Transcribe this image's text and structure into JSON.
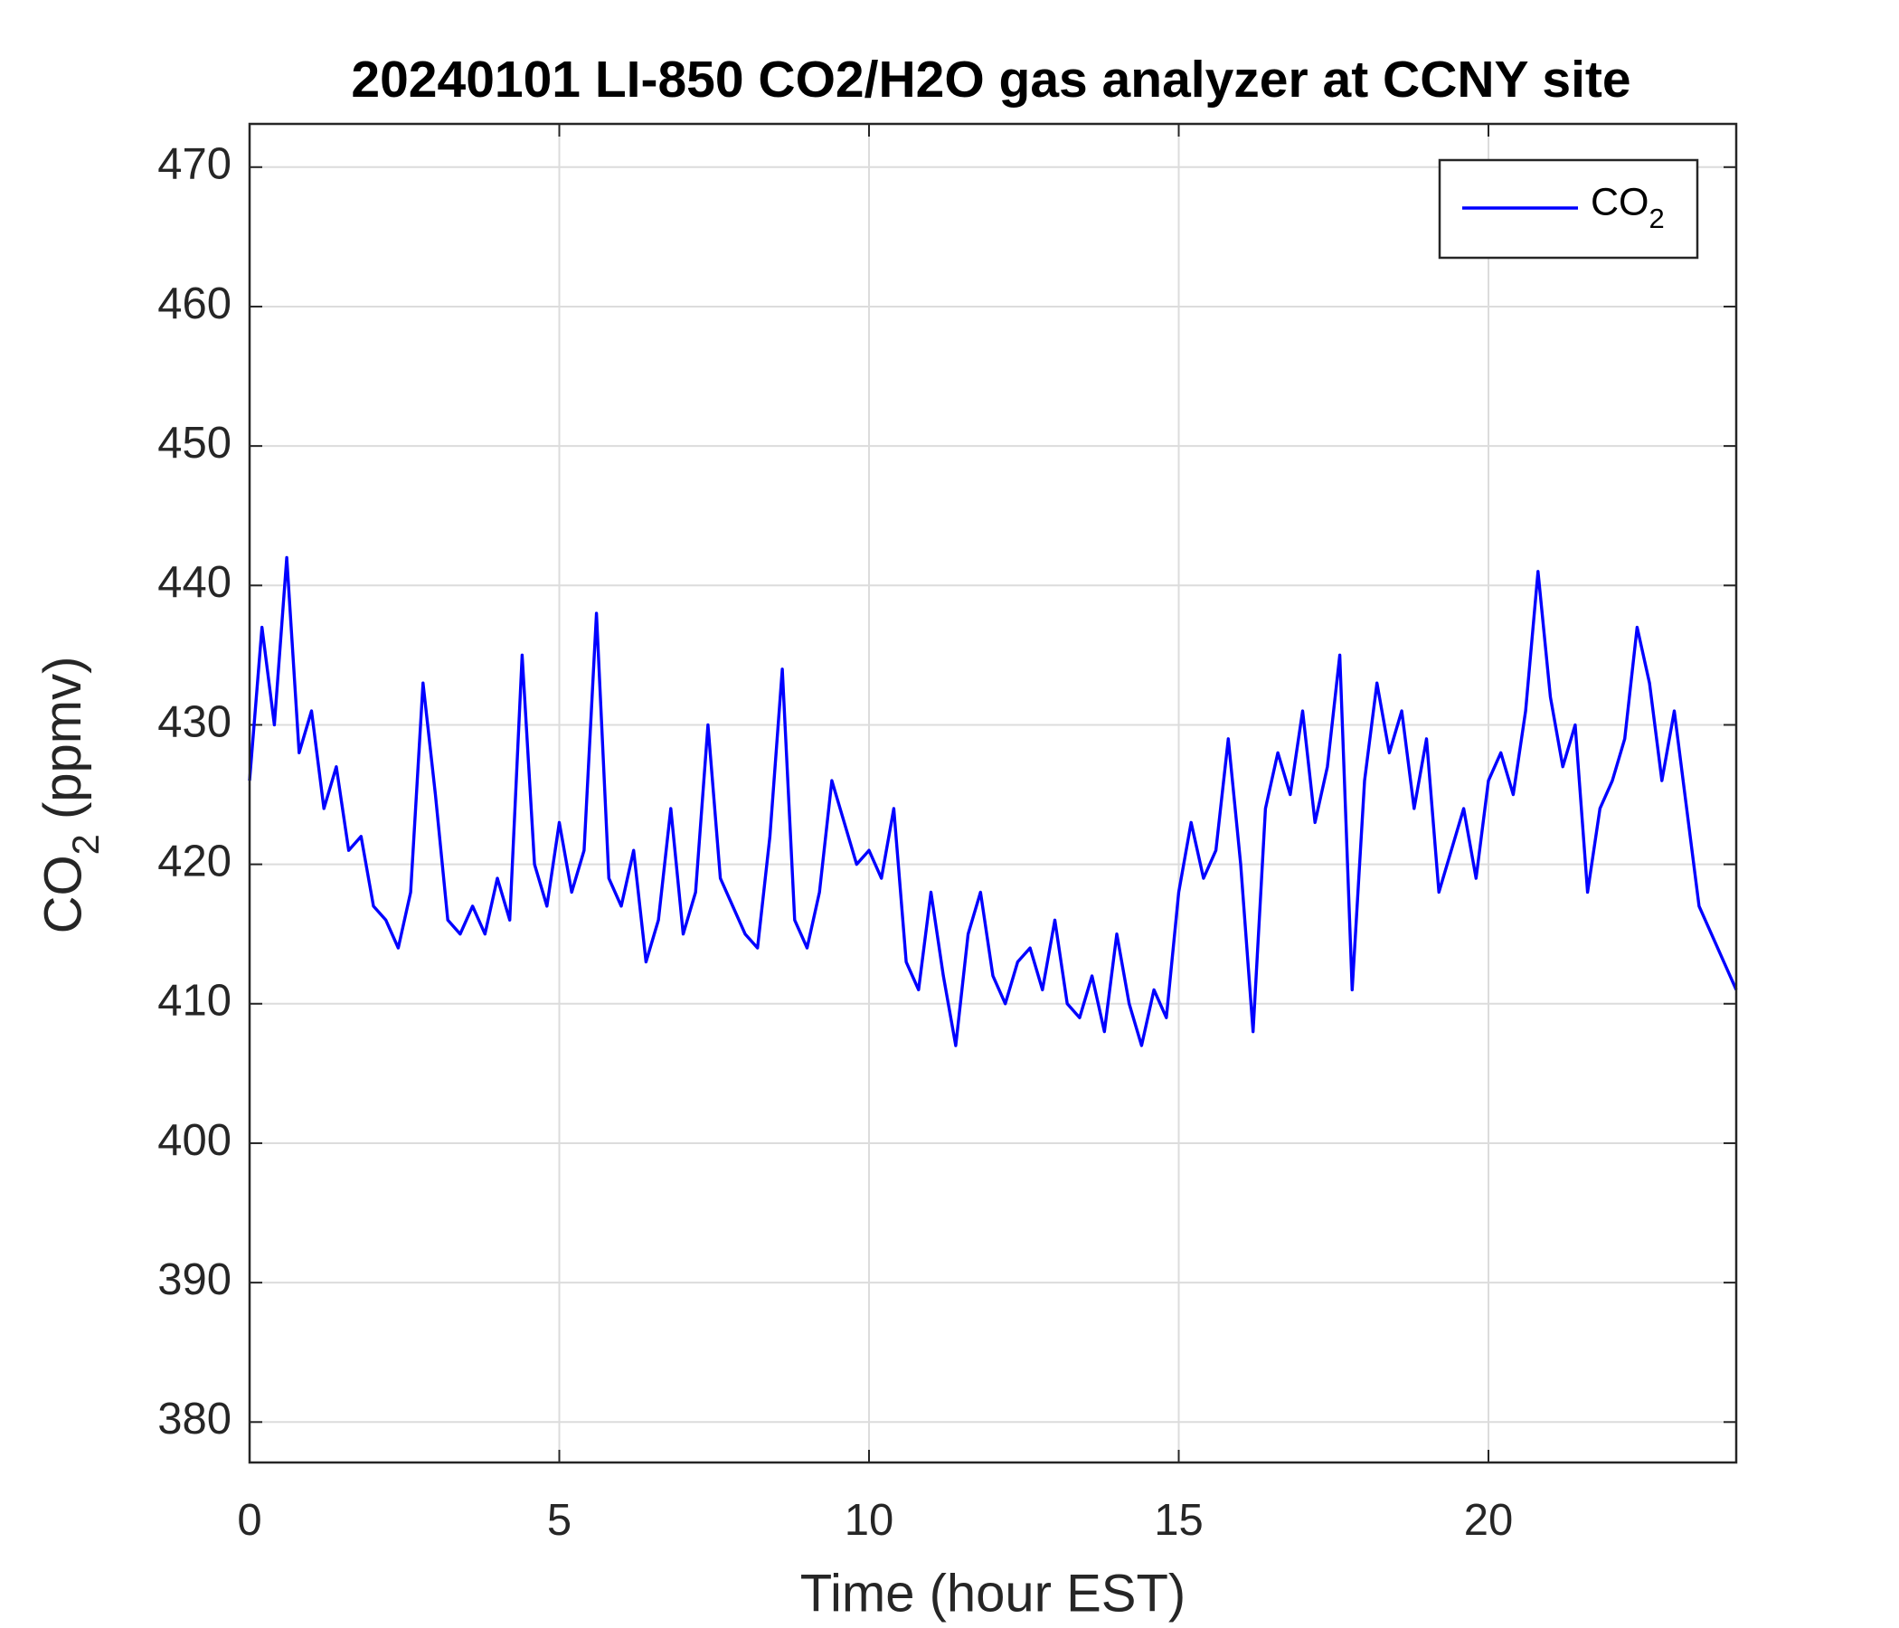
{
  "chart_data": {
    "type": "line",
    "title": "20240101 LI-850 CO2/H2O gas analyzer at CCNY site",
    "xlabel": "Time (hour EST)",
    "ylabel": "CO2 (ppmv)",
    "x": [
      0,
      0.2,
      0.4,
      0.6,
      0.8,
      1,
      1.2,
      1.4,
      1.6,
      1.8,
      2,
      2.2,
      2.4,
      2.6,
      2.8,
      3,
      3.2,
      3.4,
      3.6,
      3.8,
      4,
      4.2,
      4.4,
      4.6,
      4.8,
      5,
      5.2,
      5.4,
      5.6,
      5.8,
      6,
      6.2,
      6.4,
      6.6,
      6.8,
      7,
      7.2,
      7.4,
      7.6,
      7.8,
      8,
      8.2,
      8.4,
      8.6,
      8.8,
      9,
      9.2,
      9.4,
      9.6,
      9.8,
      10,
      10.2,
      10.4,
      10.6,
      10.8,
      11,
      11.2,
      11.4,
      11.6,
      11.8,
      12,
      12.2,
      12.4,
      12.6,
      12.8,
      13,
      13.2,
      13.4,
      13.6,
      13.8,
      14,
      14.2,
      14.4,
      14.6,
      14.8,
      15,
      15.2,
      15.4,
      15.6,
      15.8,
      16,
      16.2,
      16.4,
      16.6,
      16.8,
      17,
      17.2,
      17.4,
      17.6,
      17.8,
      18,
      18.2,
      18.4,
      18.6,
      18.8,
      19,
      19.2,
      19.4,
      19.6,
      19.8,
      20,
      20.2,
      20.4,
      20.6,
      20.8,
      21,
      21.2,
      21.4,
      21.6,
      21.8,
      22,
      22.2,
      22.4,
      22.6,
      22.8,
      23,
      23.2,
      23.4,
      23.6,
      23.8,
      24
    ],
    "series": [
      {
        "name": "CO2",
        "color": "#0000ff",
        "values": [
          426,
          437,
          430,
          442,
          428,
          431,
          424,
          427,
          421,
          422,
          417,
          416,
          414,
          418,
          433,
          425,
          416,
          415,
          417,
          415,
          419,
          416,
          435,
          420,
          417,
          423,
          418,
          421,
          438,
          419,
          417,
          421,
          413,
          416,
          424,
          415,
          418,
          430,
          419,
          417,
          415,
          414,
          422,
          434,
          416,
          414,
          418,
          426,
          423,
          420,
          421,
          419,
          424,
          413,
          411,
          418,
          412,
          407,
          415,
          418,
          412,
          410,
          413,
          414,
          411,
          416,
          410,
          409,
          412,
          408,
          415,
          410,
          407,
          411,
          409,
          418,
          423,
          419,
          421,
          429,
          420,
          408,
          424,
          428,
          425,
          431,
          423,
          427,
          435,
          411,
          426,
          433,
          428,
          431,
          424,
          429,
          418,
          421,
          424,
          419,
          426,
          428,
          425,
          431,
          441,
          432,
          427,
          430,
          418,
          424,
          426,
          429,
          437,
          433,
          426,
          431,
          424,
          417,
          415,
          413,
          411
        ]
      }
    ],
    "xlim": [
      0,
      24
    ],
    "xticks": [
      0,
      5,
      10,
      15,
      20
    ],
    "ylim": [
      377.1,
      473.1
    ],
    "yticks": [
      380,
      390,
      400,
      410,
      420,
      430,
      440,
      450,
      460,
      470
    ],
    "grid": true,
    "legend": "upper right"
  }
}
